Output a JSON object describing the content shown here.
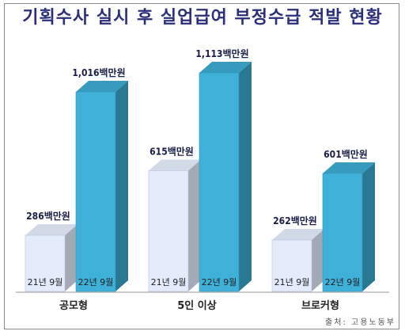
{
  "title": "기획수사 실시 후 실업급여 부정수급 적발 현황",
  "source": "출처: 고용노동부",
  "chart_data": {
    "type": "bar",
    "categories": [
      "공모형",
      "5인 이상",
      "브로커형"
    ],
    "series": [
      {
        "name": "21년 9월",
        "values": [
          286,
          615,
          262
        ],
        "labels": [
          "286백만원",
          "615백만원",
          "262백만원"
        ],
        "color": "#e4ecfb"
      },
      {
        "name": "22년 9월",
        "values": [
          1016,
          1113,
          601
        ],
        "labels": [
          "1,016백만원",
          "1,113백만원",
          "601백만원"
        ],
        "color": "#3fb0d8"
      }
    ],
    "unit": "백만원",
    "ylim": [
      0,
      1250
    ],
    "grid": false,
    "legend": "none"
  }
}
